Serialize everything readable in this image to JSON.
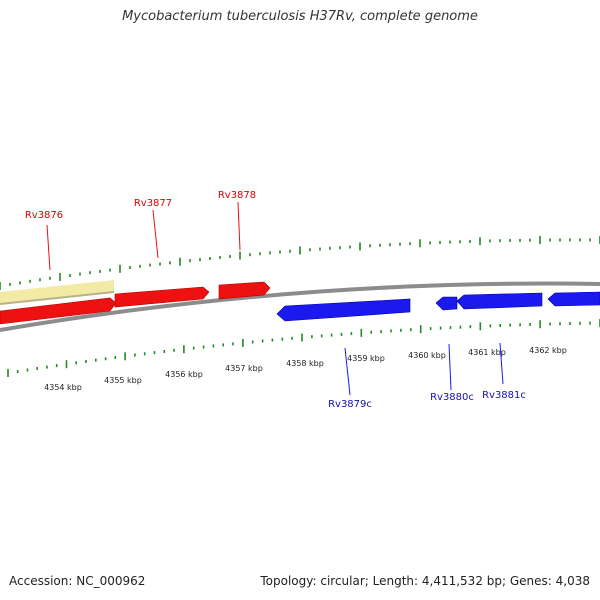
{
  "title": "Mycobacterium tuberculosis H37Rv, complete genome",
  "footer": {
    "accession": "Accession: NC_000962",
    "summary": "Topology: circular; Length: 4,411,532 bp; Genes: 4,038"
  },
  "colors": {
    "forward_gene": "#ee1111",
    "reverse_gene": "#1a1aee",
    "other_feature": "#f3eaa5",
    "backbone": "#8c8c8c",
    "ticks": "#228822"
  },
  "scale_labels": [
    "4354 kbp",
    "4355 kbp",
    "4356 kbp",
    "4357 kbp",
    "4358 kbp",
    "4359 kbp",
    "4360 kbp",
    "4361 kbp",
    "4362 kbp"
  ],
  "forward_labels": [
    "Rv3876",
    "Rv3877",
    "Rv3878"
  ],
  "reverse_labels": [
    "Rv3879c",
    "Rv3880c",
    "Rv3881c"
  ]
}
